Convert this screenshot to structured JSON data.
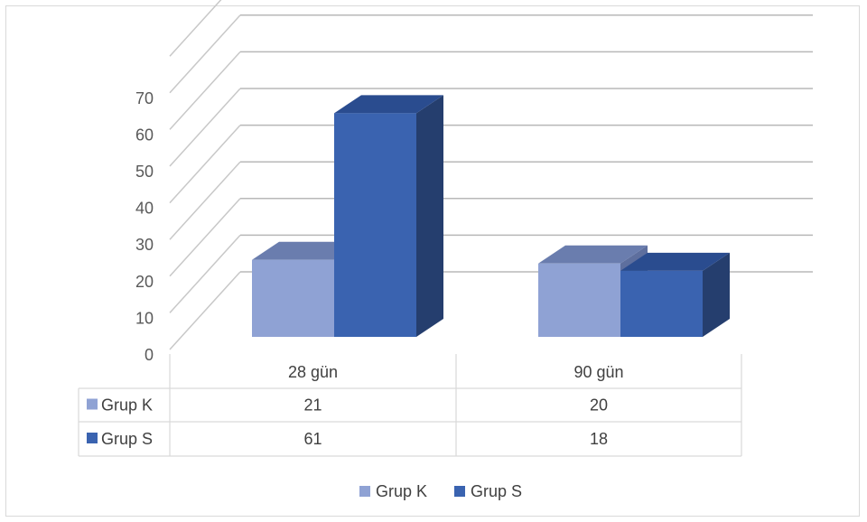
{
  "chart_data": {
    "type": "bar",
    "style": "3d-clustered-column-with-data-table",
    "categories": [
      "28 gün",
      "90 gün"
    ],
    "series": [
      {
        "name": "Grup K",
        "values": [
          21,
          20
        ],
        "color": "#8FA2D4",
        "top_color": "#6A7DAE",
        "side_color": "#5E6F9E"
      },
      {
        "name": "Grup S",
        "values": [
          61,
          18
        ],
        "color": "#3A63B0",
        "top_color": "#2A4C8F",
        "side_color": "#253E6E"
      }
    ],
    "yticks": [
      "0",
      "10",
      "20",
      "30",
      "40",
      "50",
      "60",
      "70"
    ],
    "ylim": [
      0,
      80
    ],
    "grid": true,
    "legend_position": "bottom",
    "title": "",
    "xlabel": "",
    "ylabel": ""
  }
}
